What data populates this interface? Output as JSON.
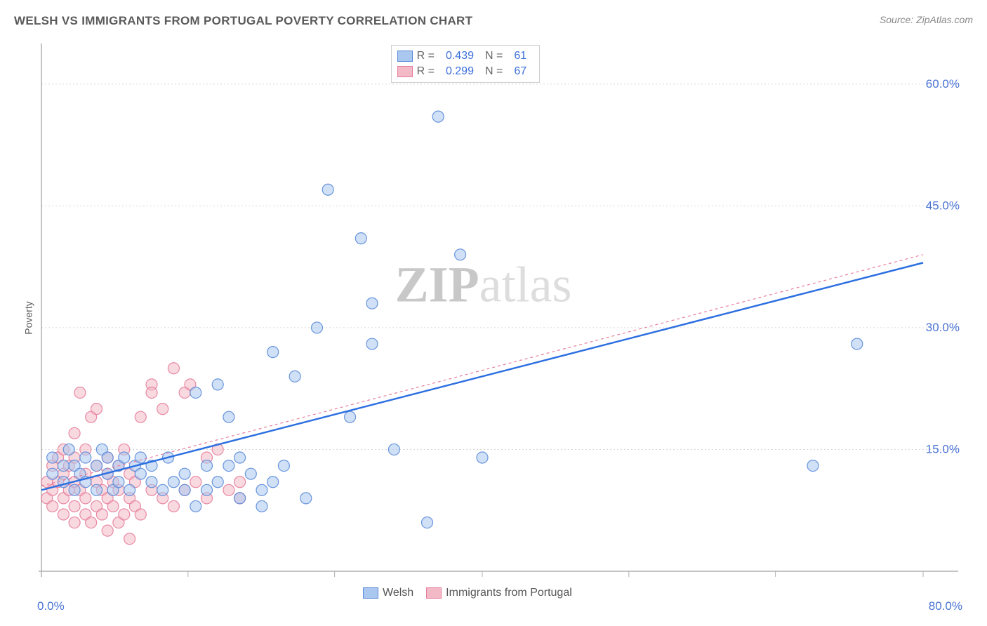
{
  "title": "WELSH VS IMMIGRANTS FROM PORTUGAL POVERTY CORRELATION CHART",
  "source": "Source: ZipAtlas.com",
  "watermark_zip": "ZIP",
  "watermark_atlas": "atlas",
  "ylabel": "Poverty",
  "chart": {
    "type": "scatter",
    "xlim": [
      0,
      80
    ],
    "ylim": [
      0,
      65
    ],
    "x_axis_start_label": "0.0%",
    "x_axis_end_label": "80.0%",
    "y_ticks": [
      15,
      30,
      45,
      60
    ],
    "y_tick_labels": [
      "15.0%",
      "30.0%",
      "45.0%",
      "60.0%"
    ],
    "x_grid_ticks": [
      13.3,
      26.6,
      40,
      53.3,
      66.6,
      80
    ],
    "grid_color": "#d8d8d8",
    "axis_color": "#b0b0b0",
    "tick_label_color": "#4a74d4",
    "tick_label_fontsize": 17,
    "marker_radius": 8,
    "marker_opacity": 0.55,
    "series": [
      {
        "name": "Welsh",
        "color_fill": "#a9c7ef",
        "color_stroke": "#5a8bd8",
        "R": "0.439",
        "N": "61",
        "trend": {
          "x1": 0,
          "y1": 10,
          "x2": 80,
          "y2": 38,
          "color": "#2c6fe0",
          "width": 2.5
        },
        "points": [
          [
            1,
            12
          ],
          [
            1,
            14
          ],
          [
            2,
            11
          ],
          [
            2,
            13
          ],
          [
            2.5,
            15
          ],
          [
            3,
            10
          ],
          [
            3,
            13
          ],
          [
            3.5,
            12
          ],
          [
            4,
            11
          ],
          [
            4,
            14
          ],
          [
            5,
            10
          ],
          [
            5,
            13
          ],
          [
            5.5,
            15
          ],
          [
            6,
            12
          ],
          [
            6,
            14
          ],
          [
            6.5,
            10
          ],
          [
            7,
            11
          ],
          [
            7,
            13
          ],
          [
            7.5,
            14
          ],
          [
            8,
            10
          ],
          [
            8.5,
            13
          ],
          [
            9,
            12
          ],
          [
            9,
            14
          ],
          [
            10,
            11
          ],
          [
            10,
            13
          ],
          [
            11,
            10
          ],
          [
            11.5,
            14
          ],
          [
            12,
            11
          ],
          [
            13,
            10
          ],
          [
            13,
            12
          ],
          [
            14,
            8
          ],
          [
            14,
            22
          ],
          [
            15,
            10
          ],
          [
            15,
            13
          ],
          [
            16,
            23
          ],
          [
            16,
            11
          ],
          [
            17,
            19
          ],
          [
            17,
            13
          ],
          [
            18,
            9
          ],
          [
            18,
            14
          ],
          [
            19,
            12
          ],
          [
            20,
            8
          ],
          [
            20,
            10
          ],
          [
            21,
            27
          ],
          [
            21,
            11
          ],
          [
            22,
            13
          ],
          [
            23,
            24
          ],
          [
            24,
            9
          ],
          [
            25,
            30
          ],
          [
            26,
            47
          ],
          [
            28,
            19
          ],
          [
            29,
            41
          ],
          [
            30,
            33
          ],
          [
            30,
            28
          ],
          [
            32,
            15
          ],
          [
            35,
            6
          ],
          [
            36,
            56
          ],
          [
            38,
            39
          ],
          [
            40,
            14
          ],
          [
            70,
            13
          ],
          [
            74,
            28
          ]
        ]
      },
      {
        "name": "Immigrants from Portugal",
        "color_fill": "#f4b9c7",
        "color_stroke": "#e67d9b",
        "R": "0.299",
        "N": "67",
        "trend": {
          "x1": 0,
          "y1": 10.5,
          "x2": 80,
          "y2": 39,
          "color": "#e67d9b",
          "width": 1.2,
          "dash": "4 4"
        },
        "points": [
          [
            0.5,
            9
          ],
          [
            0.5,
            11
          ],
          [
            1,
            8
          ],
          [
            1,
            10
          ],
          [
            1,
            13
          ],
          [
            1.5,
            11
          ],
          [
            1.5,
            14
          ],
          [
            2,
            7
          ],
          [
            2,
            9
          ],
          [
            2,
            12
          ],
          [
            2,
            15
          ],
          [
            2.5,
            10
          ],
          [
            2.5,
            13
          ],
          [
            3,
            6
          ],
          [
            3,
            8
          ],
          [
            3,
            11
          ],
          [
            3,
            14
          ],
          [
            3,
            17
          ],
          [
            3.5,
            22
          ],
          [
            3.5,
            10
          ],
          [
            4,
            7
          ],
          [
            4,
            9
          ],
          [
            4,
            12
          ],
          [
            4,
            15
          ],
          [
            4.5,
            19
          ],
          [
            4.5,
            6
          ],
          [
            5,
            8
          ],
          [
            5,
            11
          ],
          [
            5,
            13
          ],
          [
            5,
            20
          ],
          [
            5.5,
            7
          ],
          [
            5.5,
            10
          ],
          [
            6,
            5
          ],
          [
            6,
            9
          ],
          [
            6,
            12
          ],
          [
            6,
            14
          ],
          [
            6.5,
            8
          ],
          [
            6.5,
            11
          ],
          [
            7,
            6
          ],
          [
            7,
            10
          ],
          [
            7,
            13
          ],
          [
            7.5,
            7
          ],
          [
            7.5,
            15
          ],
          [
            8,
            4
          ],
          [
            8,
            9
          ],
          [
            8,
            12
          ],
          [
            8.5,
            8
          ],
          [
            8.5,
            11
          ],
          [
            9,
            19
          ],
          [
            9,
            7
          ],
          [
            10,
            23
          ],
          [
            10,
            10
          ],
          [
            10,
            22
          ],
          [
            11,
            9
          ],
          [
            11,
            20
          ],
          [
            12,
            8
          ],
          [
            12,
            25
          ],
          [
            13,
            10
          ],
          [
            13,
            22
          ],
          [
            13.5,
            23
          ],
          [
            14,
            11
          ],
          [
            15,
            9
          ],
          [
            15,
            14
          ],
          [
            16,
            15
          ],
          [
            17,
            10
          ],
          [
            18,
            11
          ],
          [
            18,
            9
          ]
        ]
      }
    ],
    "legend_bottom": [
      {
        "label": "Welsh",
        "fill": "#a9c7ef",
        "stroke": "#5a8bd8"
      },
      {
        "label": "Immigrants from Portugal",
        "fill": "#f4b9c7",
        "stroke": "#e67d9b"
      }
    ]
  }
}
